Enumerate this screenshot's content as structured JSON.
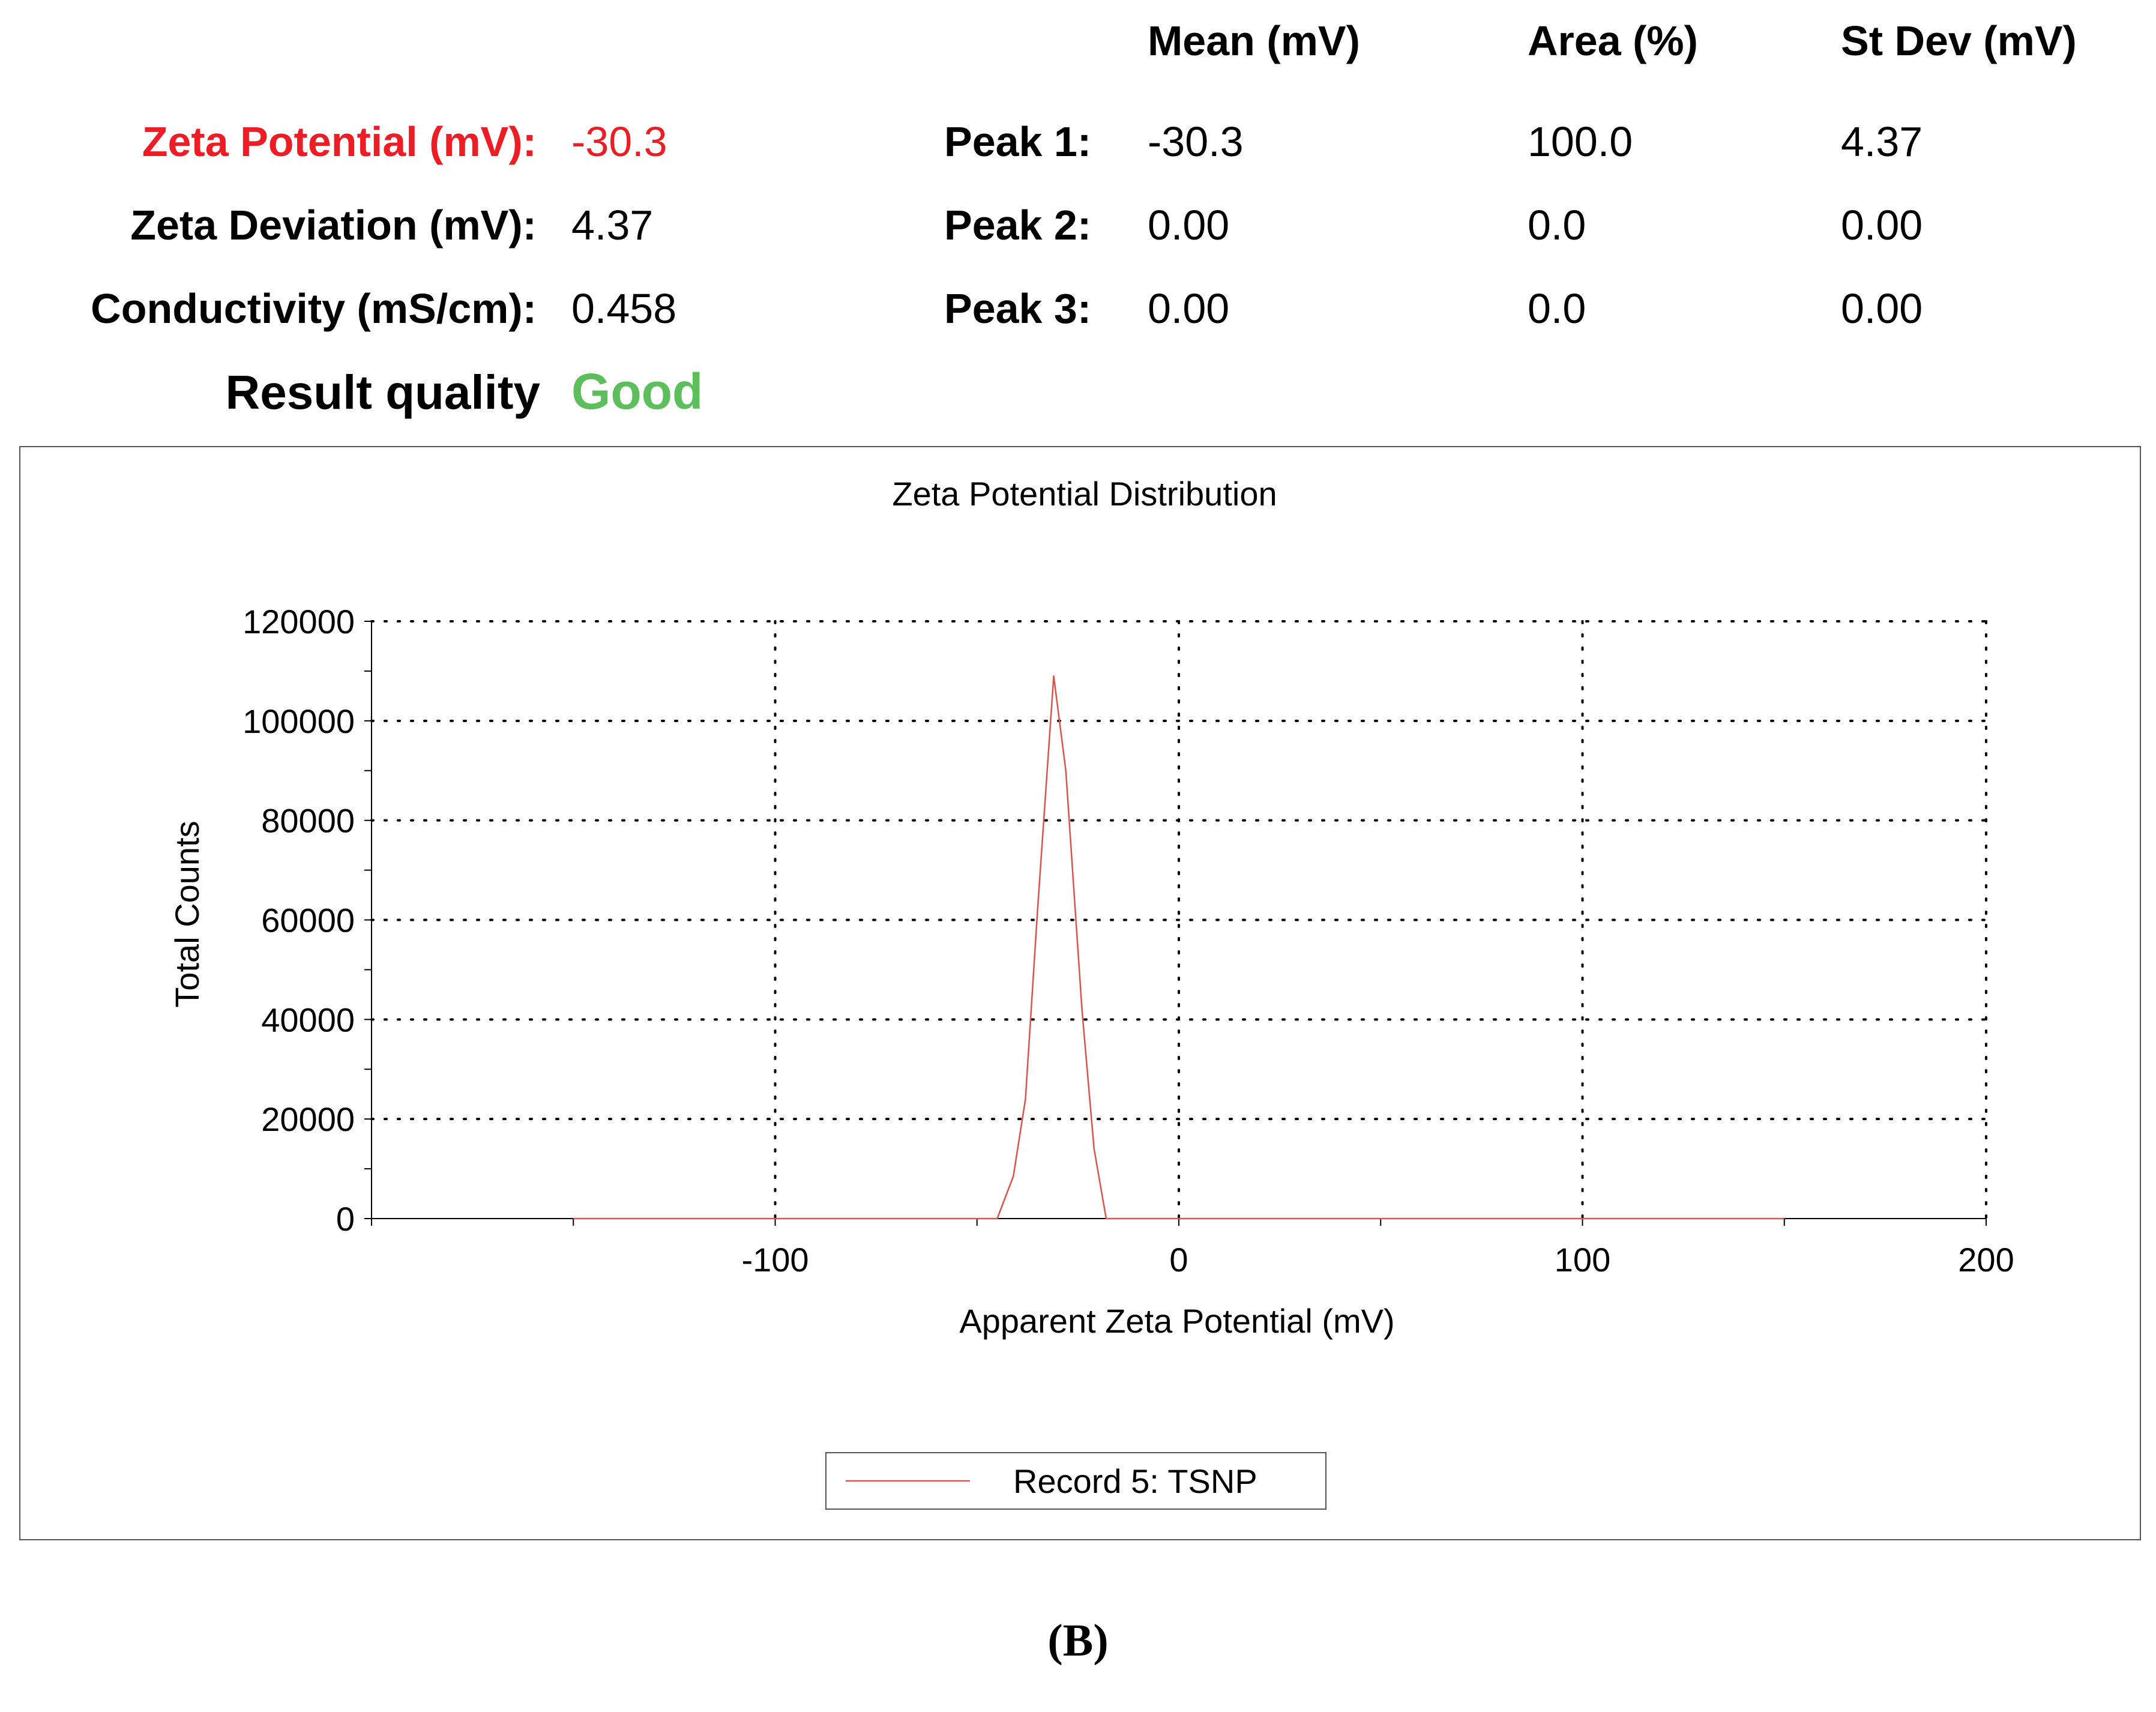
{
  "summary": {
    "zeta_potential_label": "Zeta Potential (mV):",
    "zeta_potential_value": "-30.3",
    "zeta_deviation_label": "Zeta Deviation (mV):",
    "zeta_deviation_value": "4.37",
    "conductivity_label": "Conductivity (mS/cm):",
    "conductivity_value": "0.458",
    "result_quality_label": "Result quality",
    "result_quality_value": "Good"
  },
  "peaks_table": {
    "headers": [
      "Mean (mV)",
      "Area (%)",
      "St Dev (mV)"
    ],
    "rows": [
      {
        "label": "Peak 1:",
        "mean": "-30.3",
        "area": "100.0",
        "stdev": "4.37"
      },
      {
        "label": "Peak 2:",
        "mean": "0.00",
        "area": "0.0",
        "stdev": "0.00"
      },
      {
        "label": "Peak 3:",
        "mean": "0.00",
        "area": "0.0",
        "stdev": "0.00"
      }
    ]
  },
  "colors": {
    "highlight_red": "#ee1c24",
    "quality_good": "#5cbf5c",
    "series_line": "#d9534f"
  },
  "figure_label": "(B)",
  "chart_data": {
    "type": "line",
    "title": "Zeta Potential Distribution",
    "xlabel": "Apparent Zeta Potential (mV)",
    "ylabel": "Total Counts",
    "xlim": [
      -200,
      200
    ],
    "ylim": [
      0,
      120000
    ],
    "xticks": [
      -100,
      0,
      100,
      200
    ],
    "yticks": [
      0,
      20000,
      40000,
      60000,
      80000,
      100000,
      120000
    ],
    "grid": true,
    "legend": "bottom-center",
    "series": [
      {
        "name": "Record 5: TSNP",
        "x": [
          -150,
          -100,
          -50,
          -45,
          -41,
          -38,
          -35,
          -31,
          -28,
          -24,
          -21,
          -18,
          0,
          50,
          100,
          150
        ],
        "y": [
          0,
          0,
          0,
          0,
          8500,
          24000,
          62000,
          109000,
          90000,
          42000,
          14000,
          0,
          0,
          0,
          0,
          0
        ]
      }
    ]
  }
}
